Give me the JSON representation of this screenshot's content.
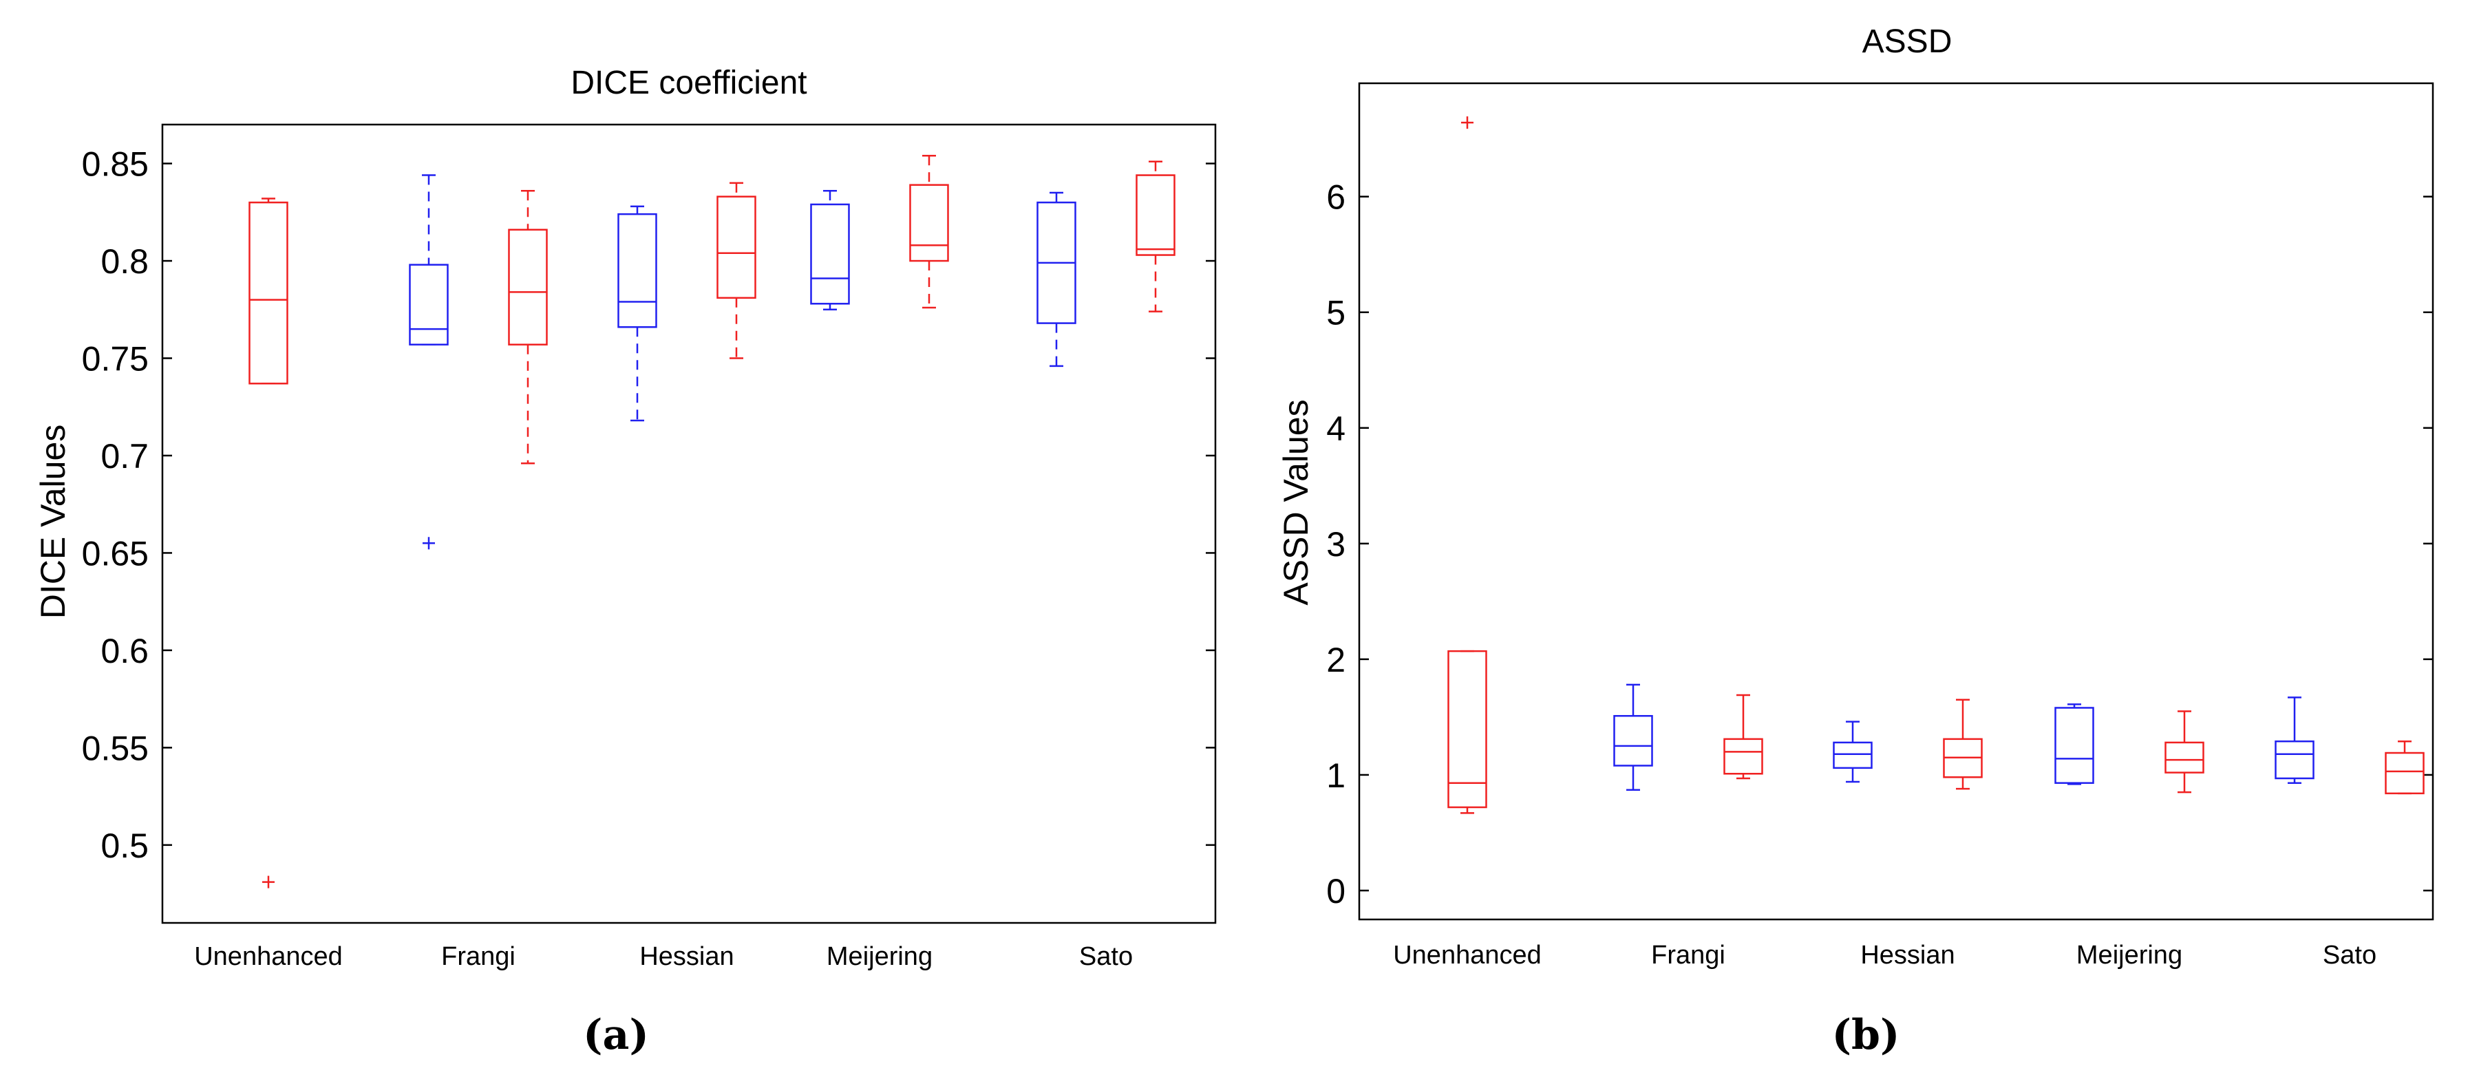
{
  "colors": {
    "blue": "#2020f0",
    "red": "#f02020",
    "axis": "#000000",
    "background": "#ffffff"
  },
  "chart_data": [
    {
      "type": "boxplot",
      "panel_label": "(a)",
      "title": "DICE coefficient",
      "xlabel": "",
      "ylabel": "DICE Values",
      "ylim": [
        0.46,
        0.87
      ],
      "yticks": [
        0.5,
        0.55,
        0.6,
        0.65,
        0.7,
        0.75,
        0.8,
        0.85
      ],
      "ytick_labels": [
        "0.5",
        "0.55",
        "0.6",
        "0.65",
        "0.7",
        "0.75",
        "0.8",
        "0.85"
      ],
      "categories": [
        "Unenhanced",
        "Frangi",
        "Hessian",
        "Meijering",
        "Sato"
      ],
      "grid": false,
      "series": [
        {
          "name": "blue",
          "color": "blue",
          "boxes": [
            null,
            {
              "whisker_low": 0.757,
              "q1": 0.757,
              "median": 0.765,
              "q3": 0.798,
              "whisker_high": 0.844,
              "outliers": [
                0.655
              ]
            },
            {
              "whisker_low": 0.718,
              "q1": 0.766,
              "median": 0.779,
              "q3": 0.824,
              "whisker_high": 0.828,
              "outliers": []
            },
            {
              "whisker_low": 0.775,
              "q1": 0.778,
              "median": 0.791,
              "q3": 0.829,
              "whisker_high": 0.836,
              "outliers": []
            },
            {
              "whisker_low": 0.746,
              "q1": 0.768,
              "median": 0.799,
              "q3": 0.83,
              "whisker_high": 0.835,
              "outliers": []
            }
          ]
        },
        {
          "name": "red",
          "color": "red",
          "boxes": [
            {
              "whisker_low": 0.737,
              "q1": 0.737,
              "median": 0.78,
              "q3": 0.83,
              "whisker_high": 0.832,
              "outliers": [
                0.481
              ]
            },
            {
              "whisker_low": 0.696,
              "q1": 0.757,
              "median": 0.784,
              "q3": 0.816,
              "whisker_high": 0.836,
              "outliers": []
            },
            {
              "whisker_low": 0.75,
              "q1": 0.781,
              "median": 0.804,
              "q3": 0.833,
              "whisker_high": 0.84,
              "outliers": []
            },
            {
              "whisker_low": 0.776,
              "q1": 0.8,
              "median": 0.808,
              "q3": 0.839,
              "whisker_high": 0.854,
              "outliers": []
            },
            {
              "whisker_low": 0.774,
              "q1": 0.803,
              "median": 0.806,
              "q3": 0.844,
              "whisker_high": 0.851,
              "outliers": []
            }
          ]
        }
      ]
    },
    {
      "type": "boxplot",
      "panel_label": "(b)",
      "title": "ASSD",
      "xlabel": "",
      "ylabel": "ASSD Values",
      "ylim": [
        -0.25,
        6.98
      ],
      "yticks": [
        0,
        1,
        2,
        3,
        4,
        5,
        6
      ],
      "ytick_labels": [
        "0",
        "1",
        "2",
        "3",
        "4",
        "5",
        "6"
      ],
      "categories": [
        "Unenhanced",
        "Frangi",
        "Hessian",
        "Meijering",
        "Sato"
      ],
      "grid": false,
      "series": [
        {
          "name": "blue",
          "color": "blue",
          "boxes": [
            null,
            {
              "whisker_low": 0.87,
              "q1": 1.08,
              "median": 1.25,
              "q3": 1.51,
              "whisker_high": 1.78,
              "outliers": []
            },
            {
              "whisker_low": 0.94,
              "q1": 1.06,
              "median": 1.18,
              "q3": 1.28,
              "whisker_high": 1.46,
              "outliers": []
            },
            {
              "whisker_low": 0.92,
              "q1": 0.93,
              "median": 1.14,
              "q3": 1.58,
              "whisker_high": 1.61,
              "outliers": []
            },
            {
              "whisker_low": 0.93,
              "q1": 0.97,
              "median": 1.18,
              "q3": 1.29,
              "whisker_high": 1.67,
              "outliers": []
            }
          ]
        },
        {
          "name": "red",
          "color": "red",
          "boxes": [
            {
              "whisker_low": 0.67,
              "q1": 0.72,
              "median": 0.93,
              "q3": 2.07,
              "whisker_high": 2.07,
              "outliers": [
                6.64
              ]
            },
            {
              "whisker_low": 0.97,
              "q1": 1.01,
              "median": 1.2,
              "q3": 1.31,
              "whisker_high": 1.69,
              "outliers": []
            },
            {
              "whisker_low": 0.88,
              "q1": 0.98,
              "median": 1.15,
              "q3": 1.31,
              "whisker_high": 1.65,
              "outliers": []
            },
            {
              "whisker_low": 0.85,
              "q1": 1.02,
              "median": 1.13,
              "q3": 1.28,
              "whisker_high": 1.55,
              "outliers": []
            },
            {
              "whisker_low": 0.84,
              "q1": 0.84,
              "median": 1.03,
              "q3": 1.19,
              "whisker_high": 1.29,
              "outliers": []
            }
          ]
        }
      ]
    }
  ]
}
